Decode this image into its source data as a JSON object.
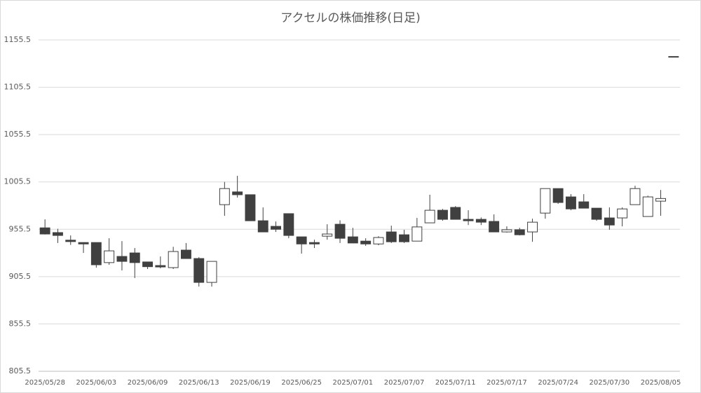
{
  "chart_data": {
    "type": "candlestick",
    "title": "アクセルの株価推移(日足)",
    "categories": [
      "2025/05/28",
      null,
      null,
      null,
      "2025/06/03",
      null,
      null,
      null,
      "2025/06/09",
      null,
      null,
      null,
      "2025/06/13",
      null,
      null,
      null,
      "2025/06/19",
      null,
      null,
      null,
      "2025/06/25",
      null,
      null,
      null,
      "2025/07/01",
      null,
      null,
      null,
      "2025/07/07",
      null,
      null,
      null,
      "2025/07/11",
      null,
      null,
      null,
      "2025/07/17",
      null,
      null,
      null,
      "2025/07/24",
      null,
      null,
      null,
      "2025/07/30",
      null,
      null,
      null,
      "2025/08/05",
      null
    ],
    "open": [
      957,
      952,
      944,
      941.5,
      941.5,
      920.3,
      926.8,
      930.5,
      921,
      917.2,
      915,
      933.5,
      924.6,
      899.4,
      981.5,
      995,
      992,
      964.5,
      958.6,
      972,
      947.5,
      941.5,
      948.2,
      960.8,
      947.5,
      943,
      940,
      952.7,
      949.7,
      943,
      962.3,
      975.6,
      978.6,
      966,
      966,
      963.8,
      952.7,
      955,
      952.7,
      972.6,
      998.5,
      989.7,
      984.5,
      977.8,
      967.5,
      967.5,
      981.5,
      969,
      985.2,
      1138
    ],
    "high": [
      966,
      956,
      949,
      941.5,
      941.5,
      946,
      943,
      935.7,
      921,
      926.8,
      937,
      941,
      926,
      921.6,
      1005.5,
      1012,
      992,
      978.6,
      963.7,
      972,
      947.5,
      944.5,
      960.8,
      965,
      957,
      946,
      948.2,
      959.3,
      955,
      967.5,
      992,
      977,
      980,
      975.6,
      968,
      971.2,
      958.6,
      957.1,
      966.7,
      998.5,
      998.5,
      992.6,
      992.6,
      977.8,
      978.6,
      978.6,
      1001.5,
      991,
      997,
      1138
    ],
    "low": [
      950,
      941,
      939,
      930.5,
      915,
      918,
      912,
      904,
      913.5,
      914.3,
      913.5,
      924.6,
      895,
      895,
      969.7,
      989,
      964.5,
      952.7,
      952.7,
      946,
      929.8,
      935.7,
      944.5,
      941,
      941,
      938,
      938.6,
      941,
      941,
      943,
      962.3,
      964.5,
      966,
      960,
      960,
      952.7,
      952,
      949,
      942.3,
      966.7,
      982.3,
      975.6,
      977.8,
      964.5,
      955,
      958.6,
      981.5,
      969,
      969.7,
      1138
    ],
    "close": [
      950.5,
      949,
      942.5,
      940,
      918,
      932.7,
      921.6,
      920.3,
      916,
      915.7,
      932,
      924.6,
      899.4,
      921.6,
      998.5,
      992,
      964.5,
      952.7,
      955.5,
      949,
      940,
      940,
      950.5,
      946,
      941,
      940,
      946.8,
      942.3,
      942.3,
      958,
      975.6,
      966,
      966,
      964.5,
      963,
      952.7,
      955,
      949.7,
      963,
      998.5,
      983.8,
      977,
      977.8,
      966,
      960,
      977,
      998.5,
      989.7,
      988,
      1138
    ],
    "up_color": "#ffffff",
    "down_color": "#404040",
    "line_color": "#404040",
    "ylim": [
      805.5,
      1155.5
    ],
    "yticks": [
      805.5,
      855.5,
      905.5,
      955.5,
      1005.5,
      1055.5,
      1105.5,
      1155.5
    ],
    "grid": true
  }
}
